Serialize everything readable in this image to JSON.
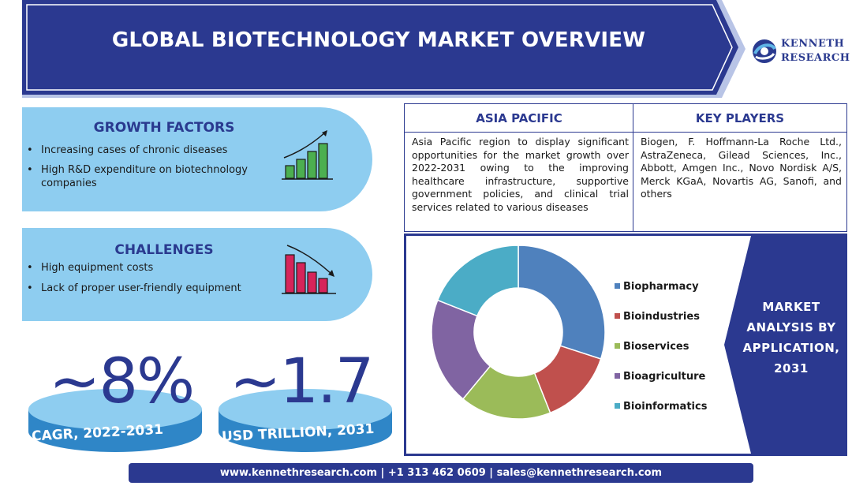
{
  "header": {
    "title": "GLOBAL BIOTECHNOLOGY MARKET OVERVIEW"
  },
  "logo": {
    "line1": "KENNETH",
    "line2": "RESEARCH",
    "icon": "globe-swirl-icon"
  },
  "growth": {
    "title": "GROWTH FACTORS",
    "items": [
      "Increasing cases of chronic diseases",
      "High R&D expenditure on biotechnology companies"
    ],
    "icon": "rising-bar-chart-icon"
  },
  "challenges": {
    "title": "CHALLENGES",
    "items": [
      "High equipment costs",
      "Lack of proper user-friendly equipment"
    ],
    "icon": "falling-bar-chart-icon"
  },
  "stats": {
    "cagr": {
      "value": "~8%",
      "label": "CAGR, 2022-2031"
    },
    "size": {
      "value": "~1.7",
      "label": "USD TRILLION, 2031"
    }
  },
  "asia": {
    "title": "ASIA PACIFIC",
    "text": "Asia Pacific region to display significant opportunities for the market growth over 2022-2031 owing to the improving healthcare infrastructure, supportive government policies, and clinical trial services related to various diseases"
  },
  "players": {
    "title": "KEY PLAYERS",
    "text": "Biogen, F. Hoffmann-La Roche Ltd., AstraZeneca, Gilead Sciences, Inc., Abbott, Amgen Inc., Novo Nordisk A/S, Merck KGaA, Novartis AG, Sanofi, and others"
  },
  "market": {
    "line1": "MARKET",
    "line2": "ANALYSIS BY",
    "line3": "APPLICATION,",
    "line4": "2031"
  },
  "chart_data": {
    "type": "pie",
    "donut": true,
    "title": "",
    "categories": [
      "Biopharmacy",
      "Bioindustries",
      "Bioservices",
      "Bioagriculture",
      "Bioinformatics"
    ],
    "values": [
      30,
      14,
      17,
      20,
      19
    ],
    "colors": [
      "#4f81bd",
      "#c0504d",
      "#9bbb59",
      "#8064a2",
      "#4bacc6"
    ],
    "legend": "right"
  },
  "footer": {
    "text": "www.kennethresearch.com | +1 313 462 0609 | sales@kennethresearch.com"
  }
}
